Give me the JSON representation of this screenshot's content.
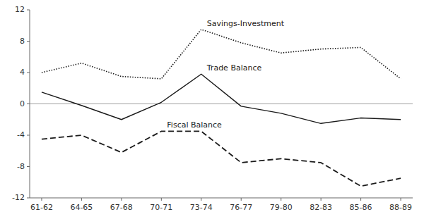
{
  "chart_data": {
    "type": "line",
    "categories": [
      "61-62",
      "64-65",
      "67-68",
      "70-71",
      "73-74",
      "76-77",
      "79-80",
      "82-83",
      "85-86",
      "88-89"
    ],
    "series": [
      {
        "name": "Savings-Investment",
        "color": "#1a1a1a",
        "line_style": "dotted",
        "values": [
          4.0,
          5.2,
          3.5,
          3.2,
          9.5,
          7.8,
          6.5,
          7.0,
          7.2,
          3.2
        ]
      },
      {
        "name": "Trade Balance",
        "color": "#1a1a1a",
        "line_style": "solid",
        "values": [
          1.5,
          -0.2,
          -2.0,
          0.2,
          3.8,
          -0.3,
          -1.2,
          -2.5,
          -1.8,
          -2.0
        ]
      },
      {
        "name": "Fiscal Balance",
        "color": "#1a1a1a",
        "line_style": "dashed",
        "values": [
          -4.5,
          -4.0,
          -6.2,
          -3.5,
          -3.5,
          -7.5,
          -7.0,
          -7.5,
          -10.5,
          -9.5
        ]
      }
    ],
    "ylim": [
      -12,
      12
    ],
    "yticks": [
      -12,
      -8,
      -4,
      0,
      4,
      8,
      12
    ],
    "grid": false
  }
}
